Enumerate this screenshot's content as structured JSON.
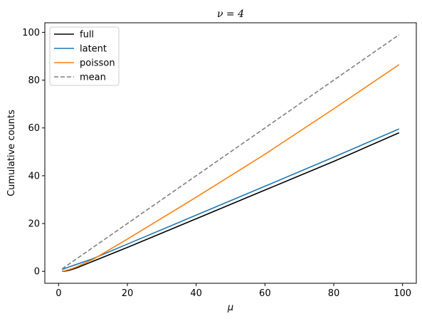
{
  "chart_data": {
    "type": "line",
    "title": "ν = 4",
    "xlabel": "μ",
    "ylabel": "Cumulative counts",
    "xlim": [
      -4,
      104
    ],
    "ylim": [
      -5,
      104
    ],
    "xticks": [
      0,
      20,
      40,
      60,
      80,
      100
    ],
    "yticks": [
      0,
      20,
      40,
      60,
      80,
      100
    ],
    "grid": false,
    "legend_position": "top-left",
    "series": [
      {
        "name": "full",
        "color": "#000000",
        "dash": "solid",
        "x": [
          1,
          2,
          3,
          5,
          10,
          20,
          40,
          60,
          80,
          99
        ],
        "y": [
          0.0,
          0.1,
          0.4,
          1.3,
          4.2,
          10.0,
          22.0,
          34.0,
          46.0,
          58.0
        ]
      },
      {
        "name": "latent",
        "color": "#1f77b4",
        "dash": "solid",
        "x": [
          1,
          2,
          3,
          5,
          10,
          20,
          40,
          60,
          80,
          99
        ],
        "y": [
          0.8,
          1.3,
          1.8,
          2.8,
          5.3,
          11.4,
          23.5,
          35.6,
          47.8,
          59.6
        ]
      },
      {
        "name": "poisson",
        "color": "#ff7f0e",
        "dash": "solid",
        "x": [
          1,
          2,
          3,
          5,
          10,
          20,
          40,
          60,
          80,
          99
        ],
        "y": [
          0.0,
          0.3,
          0.7,
          1.7,
          5.0,
          13.5,
          31.0,
          49.0,
          68.0,
          86.5
        ]
      },
      {
        "name": "mean",
        "color": "#808080",
        "dash": "dashed",
        "x": [
          1,
          99
        ],
        "y": [
          1,
          99
        ]
      }
    ]
  }
}
